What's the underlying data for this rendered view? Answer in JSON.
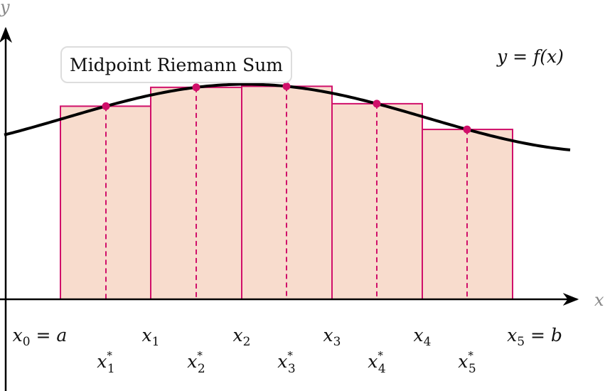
{
  "title": "Midpoint Riemann Sum",
  "curve_label": "y = f(x)",
  "axes": {
    "x_label": "x",
    "y_label": "y"
  },
  "colors": {
    "rect_fill": "#f8dccd",
    "rect_stroke": "#d0106a",
    "point": "#d0106a",
    "curve": "#000000",
    "axis": "#000000"
  },
  "partition": [
    {
      "var": "x",
      "sub": "0",
      "suffix": " = a"
    },
    {
      "var": "x",
      "sub": "1",
      "suffix": ""
    },
    {
      "var": "x",
      "sub": "2",
      "suffix": ""
    },
    {
      "var": "x",
      "sub": "3",
      "suffix": ""
    },
    {
      "var": "x",
      "sub": "4",
      "suffix": ""
    },
    {
      "var": "x",
      "sub": "5",
      "suffix": " = b"
    }
  ],
  "midpoints": [
    {
      "var": "x",
      "sub": "1",
      "sup": "*"
    },
    {
      "var": "x",
      "sub": "2",
      "sup": "*"
    },
    {
      "var": "x",
      "sub": "3",
      "sup": "*"
    },
    {
      "var": "x",
      "sub": "4",
      "sup": "*"
    },
    {
      "var": "x",
      "sub": "5",
      "sup": "*"
    }
  ]
}
